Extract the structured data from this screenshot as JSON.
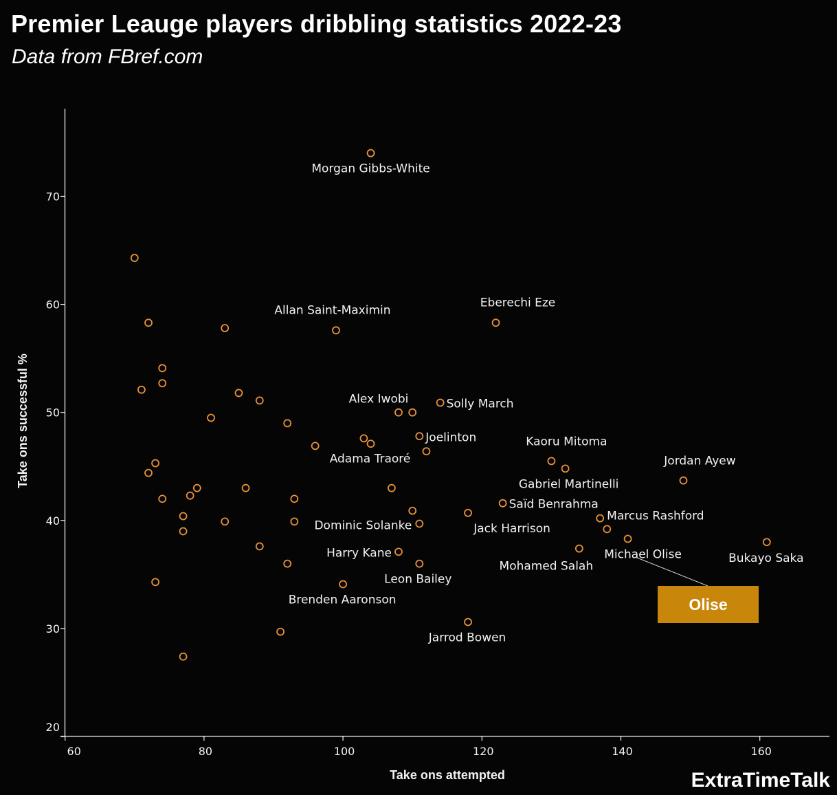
{
  "header": {
    "title": "Premier Leauge players dribbling statistics 2022-23",
    "subtitle": "Data from FBref.com"
  },
  "footer": {
    "brand": "ExtraTimeTalk"
  },
  "colors": {
    "background": "#050505",
    "marker": "#E8913A",
    "axis": "#f2f2f2",
    "callout": "#C8860A"
  },
  "chart_data": {
    "type": "scatter",
    "title": "Premier Leauge players dribbling statistics 2022-23",
    "subtitle": "Data from FBref.com",
    "xlabel": "Take ons attempted",
    "ylabel": "Take ons successful %",
    "xlim": [
      60,
      170
    ],
    "ylim": [
      20,
      77
    ],
    "xticks": [
      60,
      80,
      100,
      120,
      140,
      160
    ],
    "yticks": [
      20,
      30,
      40,
      50,
      60,
      70
    ],
    "grid": false,
    "points": [
      {
        "x": 70,
        "y": 64.3
      },
      {
        "x": 72,
        "y": 58.3
      },
      {
        "x": 83,
        "y": 57.8
      },
      {
        "x": 99,
        "y": 57.6,
        "label": "Allan Saint-Maximin"
      },
      {
        "x": 122,
        "y": 58.3,
        "label": "Eberechi Eze"
      },
      {
        "x": 104,
        "y": 74.0,
        "label": "Morgan Gibbs-White"
      },
      {
        "x": 74,
        "y": 54.1
      },
      {
        "x": 74,
        "y": 52.7
      },
      {
        "x": 71,
        "y": 52.1
      },
      {
        "x": 85,
        "y": 51.8
      },
      {
        "x": 88,
        "y": 51.1
      },
      {
        "x": 81,
        "y": 49.5
      },
      {
        "x": 92,
        "y": 49.0
      },
      {
        "x": 96,
        "y": 46.9
      },
      {
        "x": 108,
        "y": 50.0,
        "label": "Alex Iwobi"
      },
      {
        "x": 110,
        "y": 50.0
      },
      {
        "x": 114,
        "y": 50.9,
        "label": "Solly March"
      },
      {
        "x": 103,
        "y": 47.6
      },
      {
        "x": 104,
        "y": 47.1,
        "label": "Adama Traoré"
      },
      {
        "x": 111,
        "y": 47.8,
        "label": "Joelinton"
      },
      {
        "x": 112,
        "y": 46.4
      },
      {
        "x": 73,
        "y": 45.3
      },
      {
        "x": 72,
        "y": 44.4
      },
      {
        "x": 79,
        "y": 43.0
      },
      {
        "x": 78,
        "y": 42.3
      },
      {
        "x": 86,
        "y": 43.0
      },
      {
        "x": 74,
        "y": 42.0
      },
      {
        "x": 93,
        "y": 42.0
      },
      {
        "x": 107,
        "y": 43.0
      },
      {
        "x": 77,
        "y": 40.4
      },
      {
        "x": 83,
        "y": 39.9
      },
      {
        "x": 93,
        "y": 39.9
      },
      {
        "x": 77,
        "y": 39.0
      },
      {
        "x": 110,
        "y": 40.9
      },
      {
        "x": 111,
        "y": 39.7,
        "label": "Dominic Solanke"
      },
      {
        "x": 88,
        "y": 37.6
      },
      {
        "x": 92,
        "y": 36.0
      },
      {
        "x": 108,
        "y": 37.1,
        "label": "Harry Kane"
      },
      {
        "x": 111,
        "y": 36.0,
        "label": "Leon Bailey"
      },
      {
        "x": 73,
        "y": 34.3
      },
      {
        "x": 100,
        "y": 34.1,
        "label": "Brenden Aaronson"
      },
      {
        "x": 91,
        "y": 29.7
      },
      {
        "x": 77,
        "y": 27.4
      },
      {
        "x": 118,
        "y": 30.6,
        "label": "Jarrod Bowen"
      },
      {
        "x": 118,
        "y": 40.7,
        "label": "Jack Harrison"
      },
      {
        "x": 123,
        "y": 41.6,
        "label": "Saïd Benrahma"
      },
      {
        "x": 130,
        "y": 45.5,
        "label": "Kaoru Mitoma"
      },
      {
        "x": 132,
        "y": 44.8,
        "label": "Gabriel Martinelli"
      },
      {
        "x": 137,
        "y": 40.2,
        "label": "Marcus Rashford"
      },
      {
        "x": 138,
        "y": 39.2
      },
      {
        "x": 141,
        "y": 38.3,
        "label": "Michael Olise"
      },
      {
        "x": 134,
        "y": 37.4,
        "label": "Mohamed Salah"
      },
      {
        "x": 149,
        "y": 43.7,
        "label": "Jordan Ayew"
      },
      {
        "x": 161,
        "y": 38.0,
        "label": "Bukayo Saka"
      }
    ],
    "annotations": [
      {
        "text": "Olise",
        "target": "Michael Olise"
      }
    ]
  }
}
